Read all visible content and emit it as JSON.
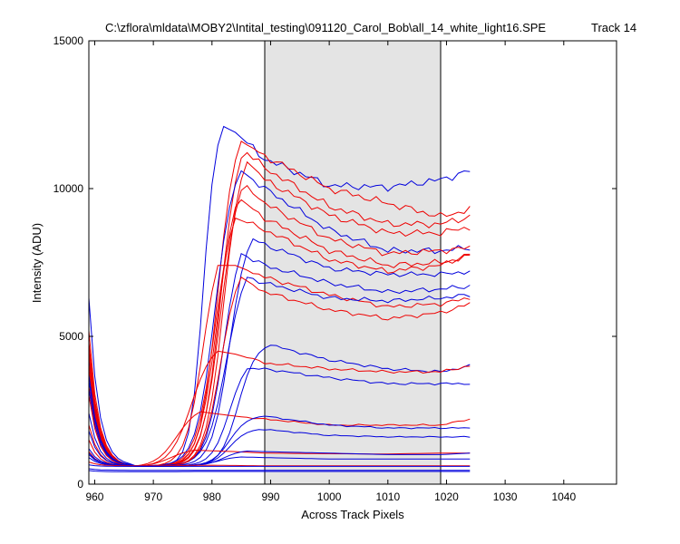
{
  "chart_data": {
    "type": "line",
    "title": "C:\\zflora\\mldata\\MOBY2\\Intital_testing\\091120_Carol_Bob\\all_14_white_light16.SPE",
    "track_label": "Track 14",
    "xlabel": "Across Track Pixels",
    "ylabel": "Intensity (ADU)",
    "xlim": [
      959,
      1049
    ],
    "ylim": [
      0,
      15000
    ],
    "x_ticks": [
      960,
      970,
      980,
      990,
      1000,
      1010,
      1020,
      1030,
      1040
    ],
    "y_ticks": [
      0,
      5000,
      10000,
      15000
    ],
    "grid": false,
    "legend": "none",
    "highlight_band": {
      "x0": 989,
      "x1": 1019,
      "color": "#e4e4e4"
    },
    "colors": {
      "blue": "#0000dd",
      "red": "#ee0000"
    },
    "x": [
      959,
      960,
      961,
      962,
      963,
      964,
      965,
      966,
      967,
      968,
      969,
      970,
      971,
      972,
      973,
      974,
      975,
      976,
      977,
      978,
      979,
      980,
      981,
      982,
      983,
      984,
      985,
      986,
      987,
      988,
      989,
      990,
      991,
      992,
      993,
      994,
      995,
      996,
      997,
      998,
      999,
      1000,
      1001,
      1002,
      1003,
      1004,
      1005,
      1006,
      1007,
      1008,
      1009,
      1010,
      1011,
      1012,
      1013,
      1014,
      1015,
      1016,
      1017,
      1018,
      1019,
      1020,
      1021,
      1022,
      1023,
      1024
    ],
    "series": [
      {
        "color": "blue",
        "left": 6300,
        "base": 620,
        "rise_mid": 978.5,
        "rise_w": 1.1,
        "peak": 12100,
        "peak_x": 982,
        "tail": [
          [
            984,
            11900
          ],
          [
            989,
            11000
          ],
          [
            1000,
            10100
          ],
          [
            1010,
            10050
          ],
          [
            1019,
            10300
          ],
          [
            1024,
            10600
          ]
        ]
      },
      {
        "color": "red",
        "left": 5200,
        "base": 600,
        "rise_mid": 981.0,
        "rise_w": 1.5,
        "peak": 11600,
        "peak_x": 985,
        "tail": [
          [
            989,
            11100
          ],
          [
            1000,
            10000
          ],
          [
            1010,
            9500
          ],
          [
            1019,
            9050
          ],
          [
            1024,
            9300
          ]
        ]
      },
      {
        "color": "red",
        "left": 4800,
        "base": 600,
        "rise_mid": 981.5,
        "rise_w": 1.5,
        "peak": 11300,
        "peak_x": 985.5,
        "tail": [
          [
            989,
            10700
          ],
          [
            1000,
            9400
          ],
          [
            1010,
            8800
          ],
          [
            1019,
            8800
          ],
          [
            1024,
            9050
          ]
        ]
      },
      {
        "color": "red",
        "left": 4600,
        "base": 600,
        "rise_mid": 982.0,
        "rise_w": 1.5,
        "peak": 10900,
        "peak_x": 986,
        "tail": [
          [
            989,
            10300
          ],
          [
            1000,
            9100
          ],
          [
            1010,
            8500
          ],
          [
            1019,
            8500
          ],
          [
            1024,
            8700
          ]
        ]
      },
      {
        "color": "blue",
        "left": 4200,
        "base": 620,
        "rise_mid": 980.5,
        "rise_w": 1.6,
        "peak": 10600,
        "peak_x": 985,
        "tail": [
          [
            989,
            10000
          ],
          [
            1000,
            8600
          ],
          [
            1010,
            7900
          ],
          [
            1019,
            7900
          ],
          [
            1024,
            8000
          ]
        ]
      },
      {
        "color": "red",
        "left": 4400,
        "base": 600,
        "rise_mid": 981.5,
        "rise_w": 1.6,
        "peak": 10200,
        "peak_x": 985.5,
        "tail": [
          [
            989,
            9500
          ],
          [
            1000,
            8300
          ],
          [
            1010,
            7800
          ],
          [
            1019,
            7900
          ],
          [
            1024,
            8000
          ]
        ]
      },
      {
        "color": "red",
        "left": 4100,
        "base": 600,
        "rise_mid": 981.0,
        "rise_w": 1.6,
        "peak": 9700,
        "peak_x": 984.5,
        "tail": [
          [
            989,
            9000
          ],
          [
            1000,
            7900
          ],
          [
            1010,
            7400
          ],
          [
            1019,
            7500
          ],
          [
            1024,
            7700
          ]
        ]
      },
      {
        "color": "red",
        "left": 3900,
        "base": 600,
        "rise_mid": 980.5,
        "rise_w": 1.6,
        "peak": 9000,
        "peak_x": 984,
        "tail": [
          [
            989,
            8600
          ],
          [
            1000,
            7600
          ],
          [
            1010,
            7200
          ],
          [
            1019,
            7400
          ],
          [
            1024,
            7800
          ]
        ]
      },
      {
        "color": "blue",
        "left": 3700,
        "base": 620,
        "rise_mid": 983.0,
        "rise_w": 1.5,
        "peak": 8300,
        "peak_x": 987,
        "tail": [
          [
            989,
            8100
          ],
          [
            1000,
            7300
          ],
          [
            1010,
            7100
          ],
          [
            1019,
            7100
          ],
          [
            1024,
            7200
          ]
        ]
      },
      {
        "color": "blue",
        "left": 3500,
        "base": 620,
        "rise_mid": 982.0,
        "rise_w": 1.5,
        "peak": 7800,
        "peak_x": 985,
        "tail": [
          [
            989,
            7400
          ],
          [
            1000,
            6800
          ],
          [
            1010,
            6500
          ],
          [
            1019,
            6600
          ],
          [
            1024,
            6700
          ]
        ]
      },
      {
        "color": "red",
        "left": 3300,
        "base": 600,
        "rise_mid": 978.5,
        "rise_w": 1.5,
        "peak": 7400,
        "peak_x": 981,
        "tail": [
          [
            984,
            7400
          ],
          [
            989,
            7000
          ],
          [
            1000,
            6400
          ],
          [
            1010,
            6000
          ],
          [
            1019,
            6100
          ],
          [
            1024,
            6300
          ]
        ]
      },
      {
        "color": "blue",
        "left": 3200,
        "base": 620,
        "rise_mid": 982.5,
        "rise_w": 1.7,
        "peak": 7000,
        "peak_x": 986,
        "tail": [
          [
            989,
            6800
          ],
          [
            1000,
            6300
          ],
          [
            1010,
            6200
          ],
          [
            1019,
            6300
          ],
          [
            1024,
            6400
          ]
        ]
      },
      {
        "color": "red",
        "left": 3000,
        "base": 600,
        "rise_mid": 981.5,
        "rise_w": 1.5,
        "peak": 7000,
        "peak_x": 985,
        "tail": [
          [
            989,
            6500
          ],
          [
            1000,
            5900
          ],
          [
            1010,
            5600
          ],
          [
            1019,
            5800
          ],
          [
            1024,
            6100
          ]
        ]
      },
      {
        "color": "blue",
        "left": 2400,
        "base": 600,
        "rise_mid": 984.5,
        "rise_w": 1.5,
        "peak": 4700,
        "peak_x": 990,
        "tail": [
          [
            989,
            4700
          ],
          [
            1000,
            4200
          ],
          [
            1010,
            3900
          ],
          [
            1019,
            3800
          ],
          [
            1024,
            4000
          ]
        ]
      },
      {
        "color": "red",
        "left": 2000,
        "base": 600,
        "rise_mid": 976.5,
        "rise_w": 1.8,
        "peak": 4500,
        "peak_x": 981,
        "tail": [
          [
            984,
            4400
          ],
          [
            989,
            4100
          ],
          [
            1000,
            3900
          ],
          [
            1010,
            3800
          ],
          [
            1019,
            3800
          ],
          [
            1024,
            4000
          ]
        ]
      },
      {
        "color": "blue",
        "left": 1800,
        "base": 620,
        "rise_mid": 983.0,
        "rise_w": 1.5,
        "peak": 3900,
        "peak_x": 986,
        "tail": [
          [
            989,
            3900
          ],
          [
            1000,
            3600
          ],
          [
            1010,
            3400
          ],
          [
            1019,
            3400
          ],
          [
            1024,
            3400
          ]
        ]
      },
      {
        "color": "red",
        "left": 1500,
        "base": 600,
        "rise_mid": 974.0,
        "rise_w": 1.8,
        "peak": 2450,
        "peak_x": 978,
        "tail": [
          [
            984,
            2300
          ],
          [
            989,
            2200
          ],
          [
            1000,
            2000
          ],
          [
            1010,
            2000
          ],
          [
            1019,
            2000
          ],
          [
            1024,
            2200
          ]
        ]
      },
      {
        "color": "blue",
        "left": 1200,
        "base": 620,
        "rise_mid": 983.0,
        "rise_w": 1.5,
        "peak": 2300,
        "peak_x": 989,
        "tail": [
          [
            989,
            2300
          ],
          [
            1000,
            2000
          ],
          [
            1010,
            1900
          ],
          [
            1019,
            1900
          ],
          [
            1024,
            1900
          ]
        ]
      },
      {
        "color": "blue",
        "left": 1000,
        "base": 620,
        "rise_mid": 983.0,
        "rise_w": 1.5,
        "peak": 1850,
        "peak_x": 988,
        "tail": [
          [
            989,
            1850
          ],
          [
            1000,
            1650
          ],
          [
            1010,
            1600
          ],
          [
            1019,
            1600
          ],
          [
            1024,
            1600
          ]
        ]
      },
      {
        "color": "red",
        "left": 1100,
        "base": 600,
        "rise_mid": 973.0,
        "rise_w": 1.8,
        "peak": 1150,
        "peak_x": 977,
        "tail": [
          [
            984,
            1100
          ],
          [
            989,
            1050
          ],
          [
            1000,
            1030
          ],
          [
            1010,
            1020
          ],
          [
            1019,
            1050
          ],
          [
            1024,
            1050
          ]
        ]
      },
      {
        "color": "blue",
        "left": 1050,
        "base": 620,
        "rise_mid": 982.0,
        "rise_w": 1.5,
        "peak": 1120,
        "peak_x": 986,
        "tail": [
          [
            989,
            1100
          ],
          [
            1000,
            1050
          ],
          [
            1010,
            1000
          ],
          [
            1019,
            1000
          ],
          [
            1024,
            1050
          ]
        ]
      },
      {
        "color": "blue",
        "left": 900,
        "base": 620,
        "rise_mid": 981.0,
        "rise_w": 1.5,
        "peak": 920,
        "peak_x": 985,
        "tail": [
          [
            989,
            900
          ],
          [
            1000,
            850
          ],
          [
            1010,
            850
          ],
          [
            1019,
            850
          ],
          [
            1024,
            850
          ]
        ]
      },
      {
        "color": "red",
        "left": 750,
        "base": 620,
        "rise_mid": 975.0,
        "rise_w": 1.5,
        "peak": 640,
        "peak_x": 980,
        "tail": [
          [
            989,
            620
          ],
          [
            1000,
            620
          ],
          [
            1010,
            620
          ],
          [
            1019,
            620
          ],
          [
            1024,
            620
          ]
        ]
      },
      {
        "color": "blue",
        "left": 650,
        "base": 600,
        "rise_mid": 975.0,
        "rise_w": 1.5,
        "peak": 600,
        "peak_x": 980,
        "tail": [
          [
            989,
            600
          ],
          [
            1000,
            600
          ],
          [
            1010,
            600
          ],
          [
            1019,
            600
          ],
          [
            1024,
            600
          ]
        ]
      },
      {
        "color": "blue",
        "left": 520,
        "base": 470,
        "rise_mid": 975.0,
        "rise_w": 1.5,
        "peak": 470,
        "peak_x": 980,
        "tail": [
          [
            989,
            470
          ],
          [
            1000,
            470
          ],
          [
            1010,
            470
          ],
          [
            1019,
            470
          ],
          [
            1024,
            470
          ]
        ]
      },
      {
        "color": "blue",
        "left": 460,
        "base": 420,
        "rise_mid": 975.0,
        "rise_w": 1.5,
        "peak": 430,
        "peak_x": 980,
        "tail": [
          [
            989,
            430
          ],
          [
            1000,
            430
          ],
          [
            1010,
            430
          ],
          [
            1019,
            430
          ],
          [
            1024,
            430
          ]
        ]
      }
    ]
  }
}
